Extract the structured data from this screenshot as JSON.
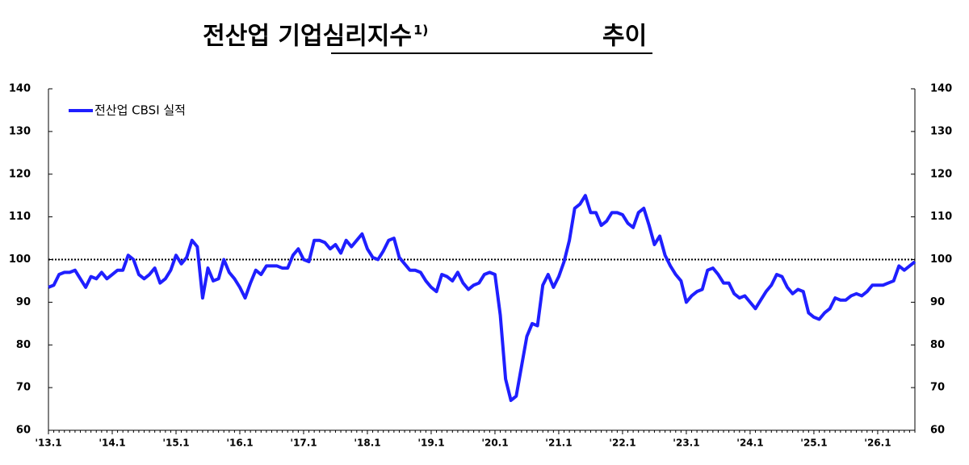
{
  "chart_data": {
    "type": "line",
    "title": "전산업 기업심리지수",
    "title_note": "1)",
    "title_suffix": "추이",
    "categories": [
      "'13.1",
      null,
      null,
      null,
      null,
      null,
      null,
      null,
      null,
      null,
      null,
      null,
      "'14.1",
      null,
      null,
      null,
      null,
      null,
      null,
      null,
      null,
      null,
      null,
      null,
      "'15.1",
      null,
      null,
      null,
      null,
      null,
      null,
      null,
      null,
      null,
      null,
      null,
      "'16.1",
      null,
      null,
      null,
      null,
      null,
      null,
      null,
      null,
      null,
      null,
      null,
      "'17.1",
      null,
      null,
      null,
      null,
      null,
      null,
      null,
      null,
      null,
      null,
      null,
      "'18.1",
      null,
      null,
      null,
      null,
      null,
      null,
      null,
      null,
      null,
      null,
      null,
      "'19.1",
      null,
      null,
      null,
      null,
      null,
      null,
      null,
      null,
      null,
      null,
      null,
      "'20.1",
      null,
      null,
      null,
      null,
      null,
      null,
      null,
      null,
      null,
      null,
      null,
      "'21.1",
      null,
      null,
      null,
      null,
      null,
      null,
      null,
      null,
      null,
      null,
      null,
      "'22.1",
      null,
      null,
      null,
      null,
      null,
      null,
      null,
      null,
      null,
      null,
      null,
      "'23.1",
      null,
      null,
      null,
      null,
      null,
      null,
      null,
      null,
      null,
      null,
      null,
      "'24.1",
      null,
      null,
      null,
      null,
      null,
      null,
      null,
      null,
      null,
      null,
      null,
      "'25.1",
      null,
      null,
      null,
      null,
      null,
      null,
      null,
      null,
      null,
      null,
      null,
      "'26.1",
      null,
      null,
      null,
      null,
      null,
      null,
      null
    ],
    "series": [
      {
        "name": "전산업 CBSI 실적",
        "color": "#1f1fff",
        "values": [
          93.5,
          94,
          96.5,
          97,
          97,
          97.5,
          95.5,
          93.5,
          96,
          95.5,
          97,
          95.5,
          96.5,
          97.5,
          97.5,
          101,
          100,
          96.5,
          95.5,
          96.5,
          98,
          94.5,
          95.5,
          97.5,
          101,
          99,
          100.5,
          104.5,
          103,
          91,
          98,
          95,
          95.5,
          100,
          97,
          95.5,
          93.5,
          91,
          94.5,
          97.5,
          96.5,
          98.5,
          98.5,
          98.5,
          98,
          98,
          101,
          102.5,
          100,
          99.5,
          104.5,
          104.5,
          104,
          102.5,
          103.5,
          101.5,
          104.5,
          103,
          104.5,
          106,
          102.5,
          100.5,
          100,
          102,
          104.5,
          105,
          100.5,
          99,
          97.5,
          97.5,
          97,
          95,
          93.5,
          92.5,
          96.5,
          96,
          95,
          97,
          94.5,
          93,
          94,
          94.5,
          96.5,
          97,
          96.5,
          87,
          72,
          67,
          68,
          75,
          82,
          85,
          84.5,
          94,
          96.5,
          93.5,
          96,
          99.5,
          104.5,
          112,
          113,
          115,
          111,
          111,
          108,
          109,
          111,
          111,
          110.5,
          108.5,
          107.5,
          111,
          112,
          108,
          103.5,
          105.5,
          101,
          98.5,
          96.5,
          95,
          90,
          91.5,
          92.5,
          93,
          97.5,
          98,
          96.5,
          94.5,
          94.5,
          92,
          91,
          91.5,
          90,
          88.5,
          90.5,
          92.5,
          94,
          96.5,
          96,
          93.5,
          92,
          93,
          92.5,
          87.5,
          86.5,
          86,
          87.5,
          88.5,
          91,
          90.5,
          90.5,
          91.5,
          92,
          91.5,
          92.5,
          94,
          94,
          94,
          94.5,
          95,
          98.5,
          97.5,
          98.5,
          99.5
        ]
      }
    ],
    "ylim": [
      60,
      140
    ],
    "yticks": [
      60,
      70,
      80,
      90,
      100,
      110,
      120,
      130,
      140
    ],
    "reference_line": 100,
    "legend": "top-left"
  }
}
